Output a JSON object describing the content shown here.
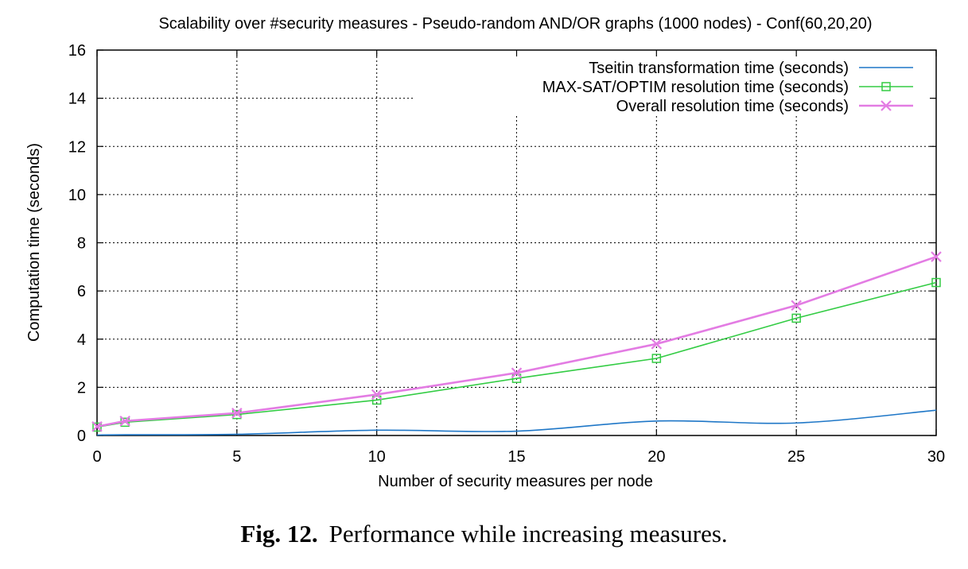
{
  "chart_data": {
    "type": "line",
    "title": "Scalability over #security measures - Pseudo-random AND/OR graphs (1000 nodes) - Conf(60,20,20)",
    "xlabel": "Number of security measures per node",
    "ylabel": "Computation time (seconds)",
    "xlim": [
      0,
      30
    ],
    "ylim": [
      0,
      16
    ],
    "xticks": [
      0,
      5,
      10,
      15,
      20,
      25,
      30
    ],
    "yticks": [
      0,
      2,
      4,
      6,
      8,
      10,
      12,
      14,
      16
    ],
    "grid": true,
    "legend_position": "top-right",
    "series": [
      {
        "name": "Tseitin transformation time (seconds)",
        "color": "#1f77c7",
        "marker": "none",
        "smooth": true,
        "x": [
          0,
          1,
          5,
          10,
          15,
          20,
          25,
          30
        ],
        "y": [
          0.02,
          0.03,
          0.05,
          0.22,
          0.18,
          0.6,
          0.52,
          1.05
        ]
      },
      {
        "name": "MAX-SAT/OPTIM resolution time (seconds)",
        "color": "#33cc44",
        "marker": "square",
        "x": [
          0,
          1,
          5,
          10,
          15,
          20,
          25,
          30
        ],
        "y": [
          0.35,
          0.55,
          0.87,
          1.47,
          2.37,
          3.2,
          4.87,
          6.35
        ]
      },
      {
        "name": "Overall resolution time (seconds)",
        "color": "#e37ce3",
        "marker": "x",
        "x": [
          0,
          1,
          5,
          10,
          15,
          20,
          25,
          30
        ],
        "y": [
          0.37,
          0.6,
          0.93,
          1.7,
          2.6,
          3.8,
          5.4,
          7.42
        ]
      }
    ]
  },
  "caption": {
    "label": "Fig. 12.",
    "text": "Performance while increasing measures."
  }
}
